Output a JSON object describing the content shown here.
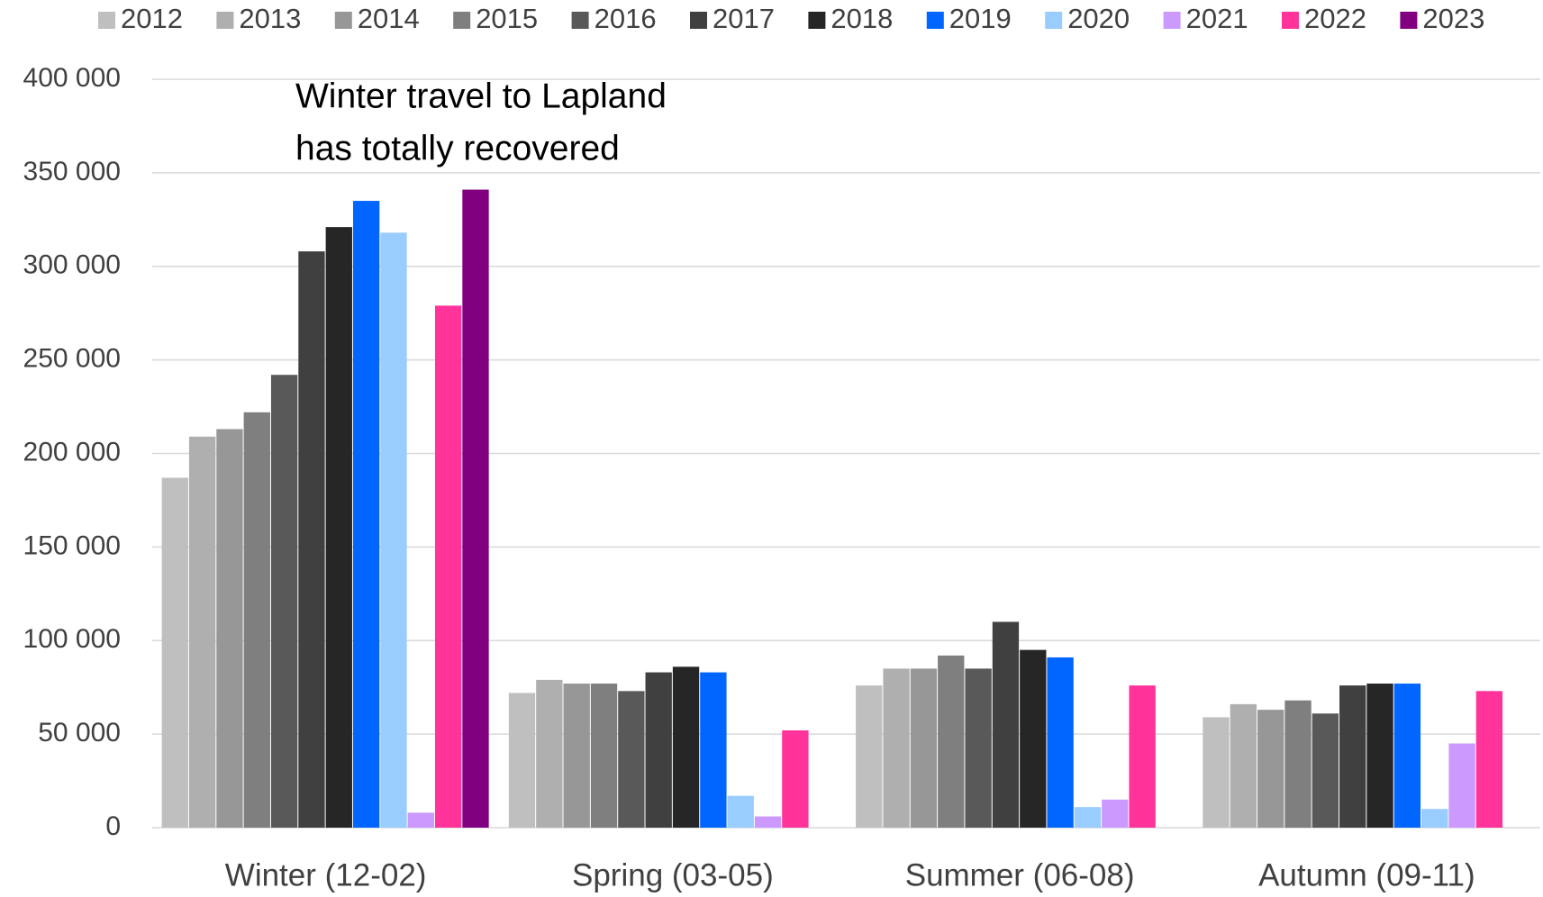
{
  "chart_data": {
    "type": "bar",
    "annotations": [
      "Winter travel to Lapland",
      "has totally recovered"
    ],
    "categories": [
      "Winter (12-02)",
      "Spring (03-05)",
      "Summer (06-08)",
      "Autumn (09-11)"
    ],
    "series": [
      {
        "name": "2012",
        "color": "#bfbfbf",
        "values": [
          187000,
          72000,
          76000,
          59000
        ]
      },
      {
        "name": "2013",
        "color": "#afafaf",
        "values": [
          209000,
          79000,
          85000,
          66000
        ]
      },
      {
        "name": "2014",
        "color": "#979797",
        "values": [
          213000,
          77000,
          85000,
          63000
        ]
      },
      {
        "name": "2015",
        "color": "#7f7f7f",
        "values": [
          222000,
          77000,
          92000,
          68000
        ]
      },
      {
        "name": "2016",
        "color": "#595959",
        "values": [
          242000,
          73000,
          85000,
          61000
        ]
      },
      {
        "name": "2017",
        "color": "#404040",
        "values": [
          308000,
          83000,
          110000,
          76000
        ]
      },
      {
        "name": "2018",
        "color": "#262626",
        "values": [
          321000,
          86000,
          95000,
          77000
        ]
      },
      {
        "name": "2019",
        "color": "#0066ff",
        "values": [
          335000,
          83000,
          91000,
          77000
        ]
      },
      {
        "name": "2020",
        "color": "#99ccff",
        "values": [
          318000,
          17000,
          11000,
          10000
        ]
      },
      {
        "name": "2021",
        "color": "#cc99ff",
        "values": [
          8000,
          6000,
          15000,
          45000
        ]
      },
      {
        "name": "2022",
        "color": "#ff3399",
        "values": [
          279000,
          52000,
          76000,
          73000
        ]
      },
      {
        "name": "2023",
        "color": "#800080",
        "values": [
          341000,
          null,
          null,
          null
        ]
      }
    ],
    "ylim": [
      0,
      400000
    ],
    "yticks": [
      0,
      {
        "value": 50000,
        "label": "50 000"
      },
      {
        "value": 100000,
        "label": "100 000"
      },
      {
        "value": 150000,
        "label": "150 000"
      },
      {
        "value": 200000,
        "label": "200 000"
      },
      {
        "value": 250000,
        "label": "250 000"
      },
      {
        "value": 300000,
        "label": "300 000"
      },
      {
        "value": 350000,
        "label": "350 000"
      },
      {
        "value": 400000,
        "label": "400 000"
      }
    ],
    "grid": true
  }
}
